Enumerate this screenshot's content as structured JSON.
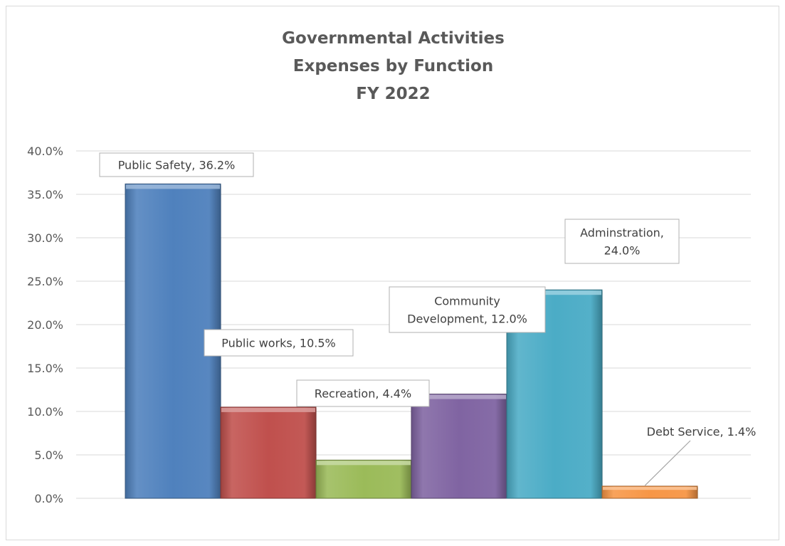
{
  "chart_data": {
    "type": "bar",
    "title": [
      "Governmental Activities",
      "Expenses by Function",
      "FY 2022"
    ],
    "categories": [
      "Public Safety",
      "Public works",
      "Recreation",
      "Community Development",
      "Adminstration",
      "Debt Service"
    ],
    "values": [
      36.2,
      10.5,
      4.4,
      12.0,
      24.0,
      1.4
    ],
    "data_labels": [
      [
        "Public Safety, 36.2%"
      ],
      [
        "Public works, 10.5%"
      ],
      [
        "Recreation, 4.4%"
      ],
      [
        "Community",
        "Development, 12.0%"
      ],
      [
        "Adminstration,",
        "24.0%"
      ],
      [
        "Debt Service, 1.4%"
      ]
    ],
    "y_ticks": [
      "0.0%",
      "5.0%",
      "10.0%",
      "15.0%",
      "20.0%",
      "25.0%",
      "30.0%",
      "35.0%",
      "40.0%"
    ],
    "ylim": [
      0,
      40
    ],
    "xlabel": "",
    "ylabel": "",
    "grid": true,
    "legend": false,
    "colors": [
      "#4f81bd",
      "#c0504d",
      "#9bbb59",
      "#8064a2",
      "#4bacc6",
      "#f79646"
    ]
  }
}
